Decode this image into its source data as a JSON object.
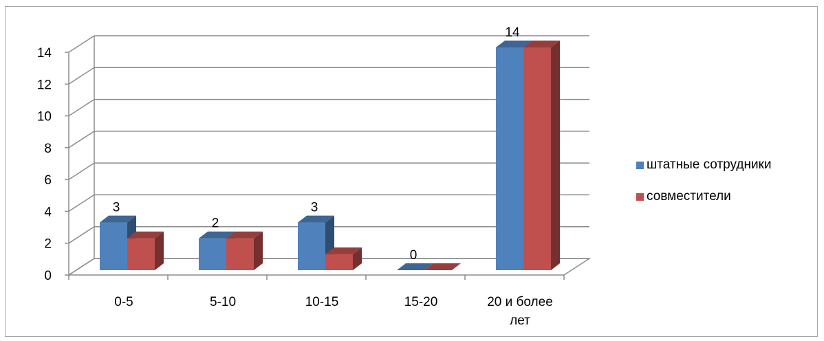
{
  "chart_data": {
    "type": "bar",
    "style": "3d-clustered-column",
    "categories": [
      "0-5",
      "5-10",
      "10-15",
      "15-20",
      "20 и более лет"
    ],
    "series": [
      {
        "name": "штатные сотрудники",
        "values": [
          3,
          2,
          3,
          0,
          14
        ],
        "color": "#4F81BD"
      },
      {
        "name": "совместители",
        "values": [
          2,
          2,
          1,
          0,
          14
        ],
        "color": "#C0504D"
      }
    ],
    "data_labels": [
      "3",
      "2",
      "3",
      "0",
      "14"
    ],
    "ylim": [
      0,
      14
    ],
    "y_ticks": [
      "0",
      "2",
      "4",
      "6",
      "8",
      "10",
      "12",
      "14"
    ],
    "grid": true,
    "legend_position": "right"
  }
}
